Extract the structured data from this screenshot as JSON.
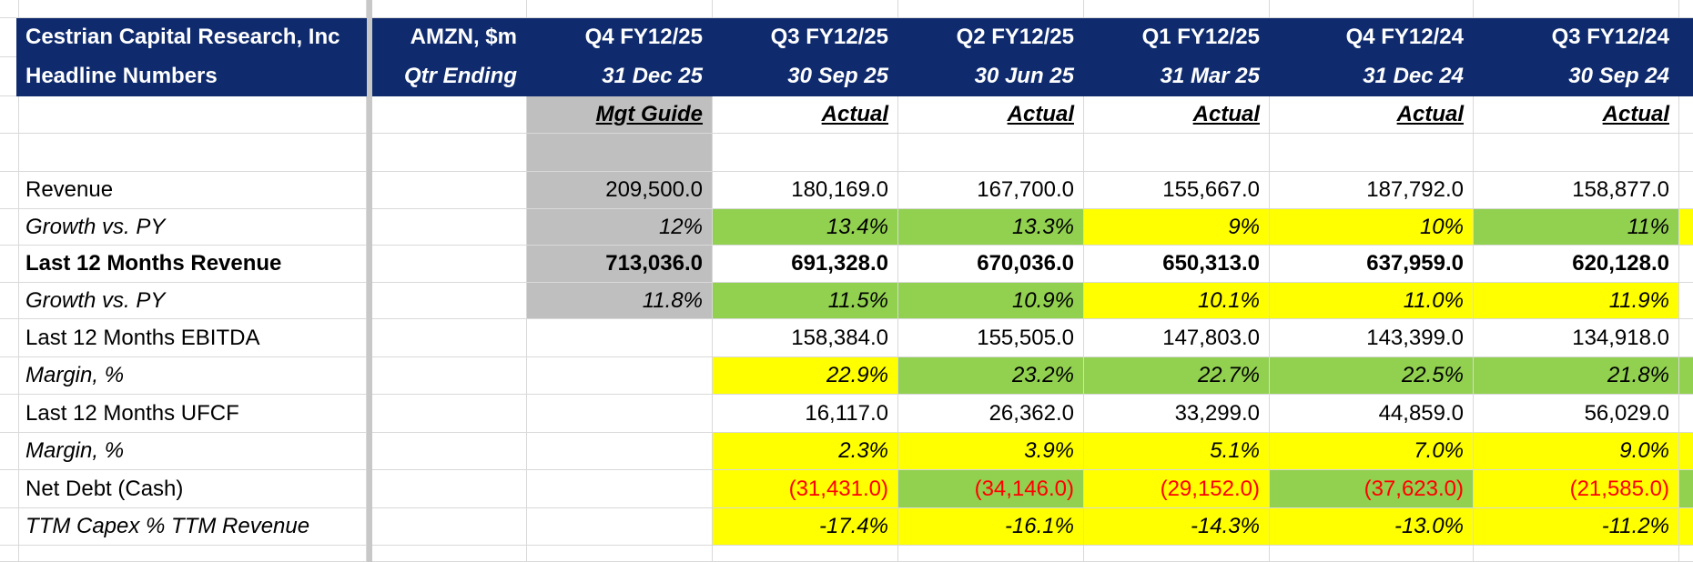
{
  "table": {
    "header": [
      [
        "Cestrian Capital Research, Inc",
        "AMZN, $m",
        "Q4 FY12/25",
        "Q3 FY12/25",
        "Q2 FY12/25",
        "Q1 FY12/25",
        "Q4 FY12/24",
        "Q3 FY12/24"
      ],
      [
        "Headline Numbers",
        "Qtr Ending",
        "31 Dec 25",
        "30 Sep 25",
        "30 Jun 25",
        "31 Mar 25",
        "31 Dec 24",
        "30 Sep 24"
      ]
    ],
    "basis": [
      "Mgt Guide",
      "Actual",
      "Actual",
      "Actual",
      "Actual",
      "Actual"
    ],
    "rows": [
      [
        "Revenue",
        "209,500.0",
        "180,169.0",
        "167,700.0",
        "155,667.0",
        "187,792.0",
        "158,877.0"
      ],
      [
        "Growth vs. PY",
        "12%",
        "13.4%",
        "13.3%",
        "9%",
        "10%",
        "11%"
      ],
      [
        "Last 12 Months Revenue",
        "713,036.0",
        "691,328.0",
        "670,036.0",
        "650,313.0",
        "637,959.0",
        "620,128.0"
      ],
      [
        "Growth vs. PY",
        "11.8%",
        "11.5%",
        "10.9%",
        "10.1%",
        "11.0%",
        "11.9%"
      ],
      [
        "Last 12 Months EBITDA",
        null,
        "158,384.0",
        "155,505.0",
        "147,803.0",
        "143,399.0",
        "134,918.0"
      ],
      [
        "Margin, %",
        null,
        "22.9%",
        "23.2%",
        "22.7%",
        "22.5%",
        "21.8%"
      ],
      [
        "Last 12 Months UFCF",
        null,
        "16,117.0",
        "26,362.0",
        "33,299.0",
        "44,859.0",
        "56,029.0"
      ],
      [
        "Margin, %",
        null,
        "2.3%",
        "3.9%",
        "5.1%",
        "7.0%",
        "9.0%"
      ],
      [
        "Net Debt (Cash)",
        null,
        "(31,431.0)",
        "(34,146.0)",
        "(29,152.0)",
        "(37,623.0)",
        "(21,585.0)"
      ],
      [
        "TTM Capex % TTM Revenue",
        null,
        "-17.4%",
        "-16.1%",
        "-14.3%",
        "-13.0%",
        "-11.2%"
      ]
    ]
  }
}
